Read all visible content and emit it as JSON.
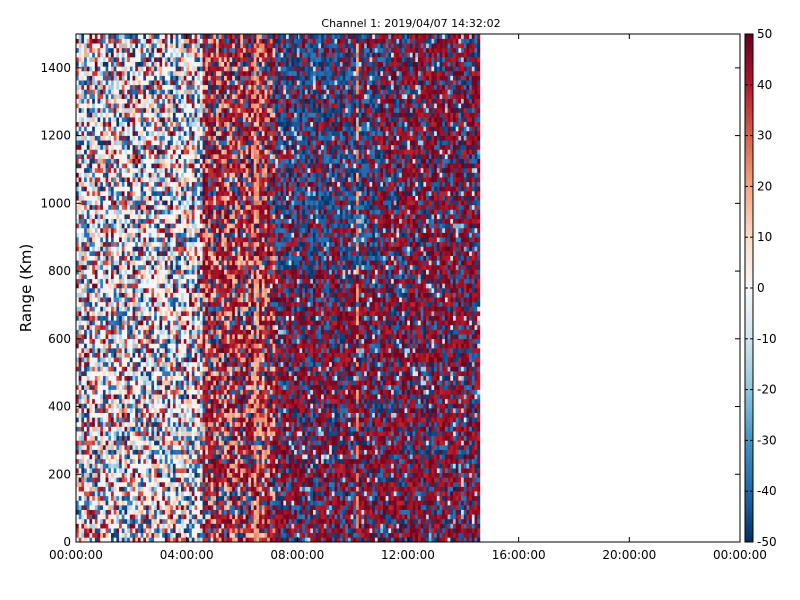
{
  "chart_data": {
    "type": "heatmap",
    "title": "Channel 1: 2019/04/07 14:32:02",
    "xlabel": "",
    "ylabel": "Range (Km)",
    "x_ticks": [
      "00:00:00",
      "04:00:00",
      "08:00:00",
      "12:00:00",
      "16:00:00",
      "20:00:00",
      "00:00:00"
    ],
    "x_range_hours": [
      0,
      24
    ],
    "data_end_hours": 14.6,
    "y_ticks": [
      0,
      200,
      400,
      600,
      800,
      1000,
      1200,
      1400
    ],
    "ylim": [
      0,
      1500
    ],
    "colorbar": {
      "ticks": [
        50,
        40,
        30,
        20,
        10,
        0,
        -10,
        -20,
        -30,
        -40,
        -50
      ],
      "vmin": -50,
      "vmax": 50,
      "colormap": "RdBu_r",
      "color_low": "#053061",
      "color_mid": "#f7f7f7",
      "color_high": "#67001f"
    },
    "grid": false,
    "legend": "none"
  }
}
